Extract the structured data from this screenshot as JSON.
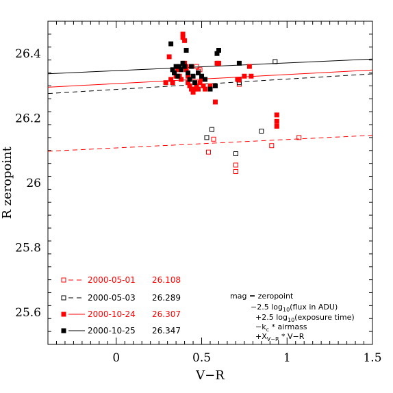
{
  "chart_data": {
    "type": "scatter",
    "title": "",
    "xlabel": "V−R",
    "ylabel": "R zeropoint",
    "xlim": [
      -0.4,
      1.5
    ],
    "ylim": [
      25.5,
      26.5
    ],
    "xticks": [
      0,
      0.5,
      1,
      1.5
    ],
    "xtick_labels": [
      "0",
      "0.5",
      "1",
      "1.5"
    ],
    "yticks": [
      25.6,
      25.8,
      26,
      26.2,
      26.4
    ],
    "ytick_labels": [
      "25.6",
      "25.8",
      "26",
      "26.2",
      "26.4"
    ],
    "grid": false,
    "legend_position": "bottom-left",
    "series": [
      {
        "name": "2000-05-01",
        "zeropoint": "26.108",
        "color": "#ff0000",
        "marker": "open-square",
        "line": "dashed",
        "fit": {
          "intercept": 26.108,
          "slope": 0.026
        },
        "x": [
          0.47,
          0.48,
          0.49,
          0.56,
          0.57,
          0.54,
          0.72,
          0.7,
          0.7,
          0.91,
          1.07
        ],
        "y": [
          26.36,
          26.345,
          26.35,
          26.3,
          26.135,
          26.095,
          26.305,
          26.055,
          26.035,
          26.115,
          26.14
        ]
      },
      {
        "name": "2000-05-03",
        "zeropoint": "26.289",
        "color": "#000000",
        "marker": "open-square",
        "line": "dashed",
        "fit": {
          "intercept": 26.289,
          "slope": 0.032
        },
        "x": [
          0.53,
          0.56,
          0.7,
          0.72,
          0.85,
          0.93
        ],
        "y": [
          26.14,
          26.165,
          26.09,
          26.31,
          26.16,
          26.375
        ]
      },
      {
        "name": "2000-10-24",
        "zeropoint": "26.307",
        "color": "#ff0000",
        "marker": "filled-square",
        "line": "solid",
        "fit": {
          "intercept": 26.307,
          "slope": 0.028
        },
        "x": [
          0.29,
          0.31,
          0.32,
          0.33,
          0.34,
          0.35,
          0.36,
          0.37,
          0.38,
          0.39,
          0.39,
          0.4,
          0.4,
          0.41,
          0.41,
          0.42,
          0.42,
          0.43,
          0.44,
          0.45,
          0.46,
          0.47,
          0.48,
          0.49,
          0.5,
          0.51,
          0.52,
          0.55,
          0.58,
          0.59,
          0.6,
          0.71,
          0.72,
          0.75,
          0.78,
          0.79,
          0.94,
          0.94,
          0.94
        ],
        "y": [
          26.31,
          26.39,
          26.32,
          26.31,
          26.34,
          26.33,
          26.35,
          26.33,
          26.32,
          26.46,
          26.45,
          26.44,
          26.37,
          26.36,
          26.35,
          26.33,
          26.31,
          26.3,
          26.29,
          26.28,
          26.29,
          26.3,
          26.29,
          26.31,
          26.32,
          26.3,
          26.29,
          26.3,
          26.25,
          26.37,
          26.37,
          26.32,
          26.32,
          26.33,
          26.36,
          26.33,
          26.21,
          26.19,
          26.175
        ]
      },
      {
        "name": "2000-10-25",
        "zeropoint": "26.347",
        "color": "#000000",
        "marker": "filled-square",
        "line": "solid",
        "fit": {
          "intercept": 26.347,
          "slope": 0.024
        },
        "x": [
          0.32,
          0.33,
          0.34,
          0.35,
          0.36,
          0.37,
          0.38,
          0.39,
          0.4,
          0.41,
          0.42,
          0.43,
          0.44,
          0.45,
          0.46,
          0.48,
          0.5,
          0.52,
          0.55,
          0.58,
          0.59,
          0.6,
          0.72
        ],
        "y": [
          26.43,
          26.35,
          26.34,
          26.36,
          26.33,
          26.36,
          26.35,
          26.37,
          26.36,
          26.41,
          26.34,
          26.32,
          26.36,
          26.33,
          26.31,
          26.34,
          26.33,
          26.32,
          26.29,
          26.3,
          26.4,
          26.41,
          26.37
        ]
      }
    ],
    "annotation": {
      "line1": "mag = zeropoint",
      "line2_pre": "−2.5 log",
      "line2_sub": "10",
      "line2_post": "(flux in ADU)",
      "line3_pre": "+2.5 log",
      "line3_sub": "10",
      "line3_post": "(exposure time)",
      "line4_pre": "−k",
      "line4_sub": "c",
      "line4_post": " * airmass",
      "line5_pre": "+X",
      "line5_sub": "V−R",
      "line5_post": " * V−R"
    }
  }
}
